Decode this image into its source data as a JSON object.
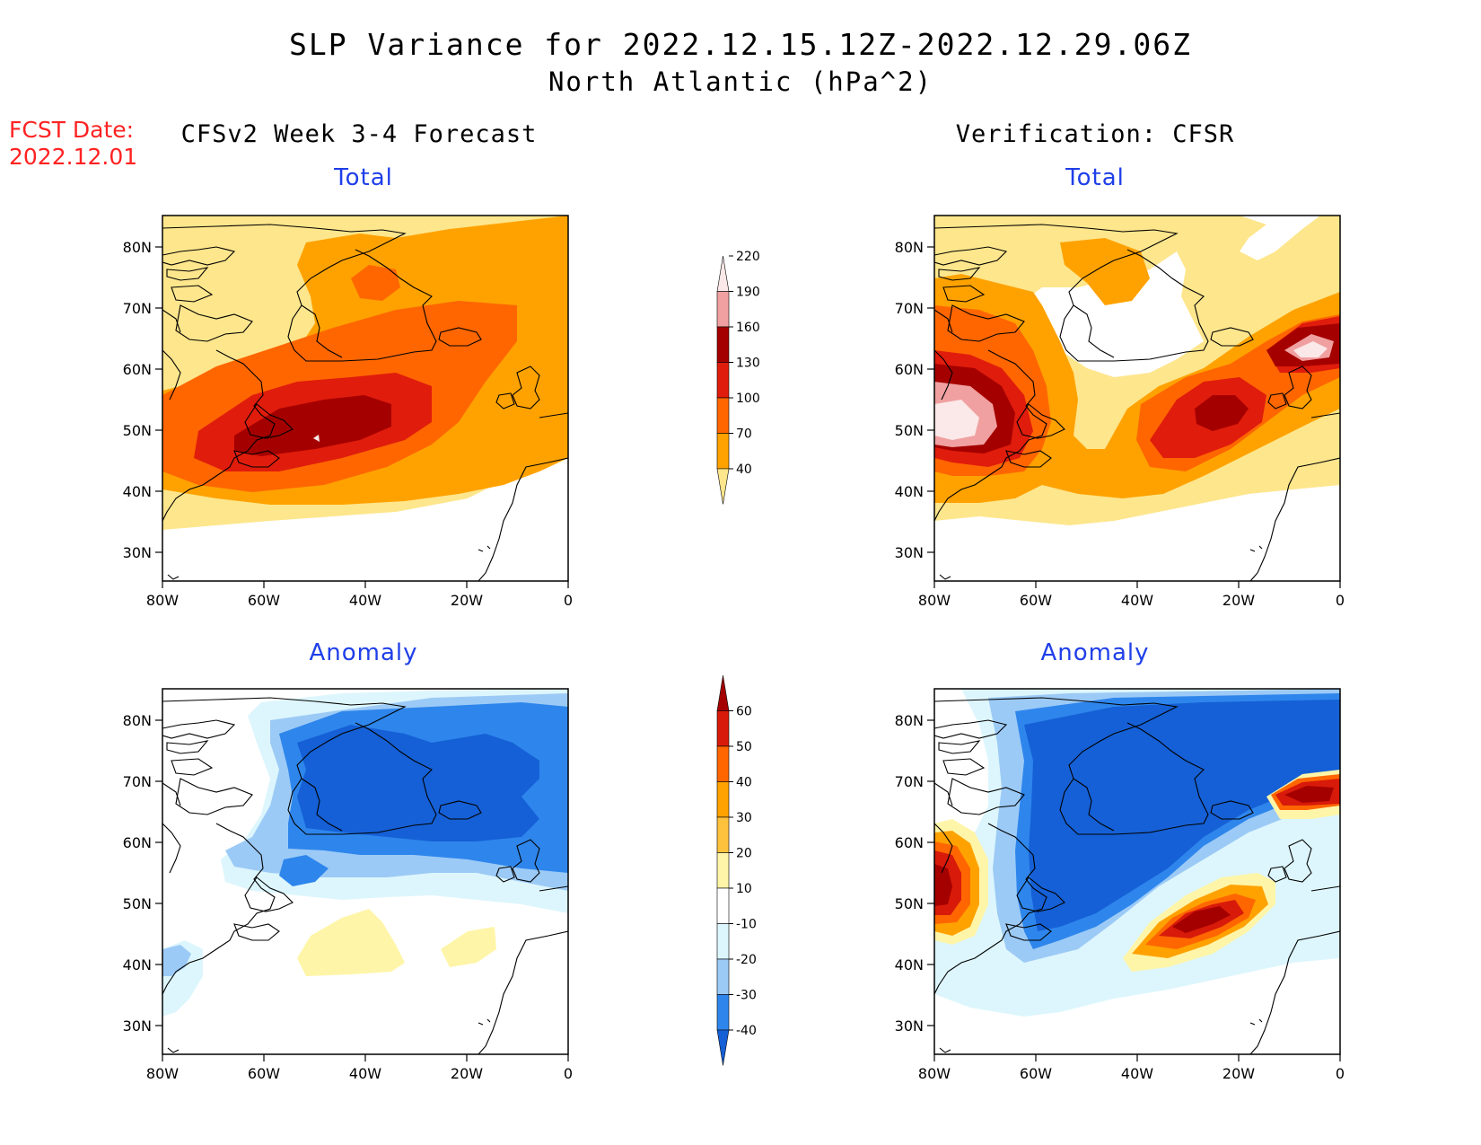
{
  "header": {
    "title": "SLP Variance for 2022.12.15.12Z-2022.12.29.06Z",
    "subtitle": "North Atlantic (hPa^2)",
    "fcst_label": "FCST Date:",
    "fcst_date": "2022.12.01"
  },
  "columns": {
    "left": "CFSv2 Week 3-4 Forecast",
    "right": "Verification: CFSR"
  },
  "panels": {
    "forecast_total": "Total",
    "verification_total": "Total",
    "forecast_anomaly": "Anomaly",
    "verification_anomaly": "Anomaly"
  },
  "axes": {
    "lat_labels": [
      "80N",
      "70N",
      "60N",
      "50N",
      "40N",
      "30N"
    ],
    "lon_labels": [
      "80W",
      "60W",
      "40W",
      "20W",
      "0"
    ]
  },
  "colorbars": {
    "total": {
      "levels": [
        "40",
        "70",
        "100",
        "130",
        "160",
        "190",
        "220"
      ],
      "colors": [
        "#fee68c",
        "#ffa200",
        "#ff6600",
        "#e01c0c",
        "#a50000",
        "#f0a0a0",
        "#fbe8e8"
      ]
    },
    "anomaly": {
      "levels": [
        "-40",
        "-30",
        "-20",
        "-10",
        "10",
        "20",
        "30",
        "40",
        "50",
        "60"
      ],
      "colors": [
        "#1560d6",
        "#2e86ec",
        "#9ccaf6",
        "#ddf6fd",
        "#ffffff",
        "#fff5a8",
        "#ffc23c",
        "#ffa200",
        "#ff6600",
        "#d81a0a",
        "#a50000"
      ]
    }
  },
  "colors": {
    "panel_title": "#1f3fe8",
    "fcst_text": "#ff2222"
  }
}
